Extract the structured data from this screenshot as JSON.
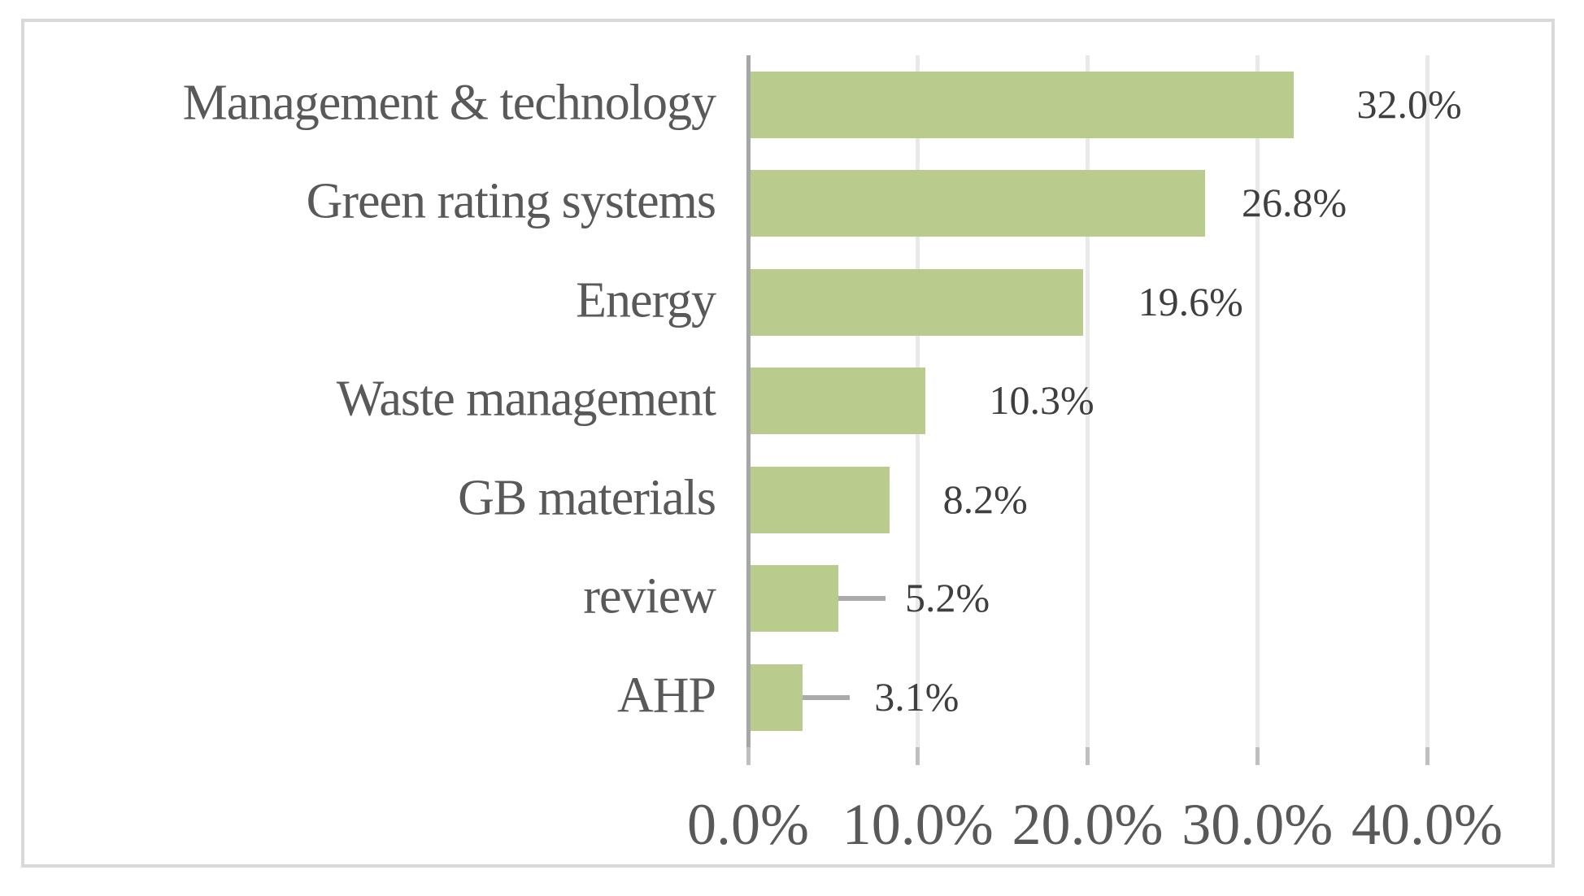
{
  "chart_data": {
    "type": "bar",
    "orientation": "horizontal",
    "title": "",
    "xlabel": "",
    "ylabel": "",
    "categories": [
      "Management & technology",
      "Green rating systems",
      "Energy",
      "Waste management",
      "GB materials",
      "review",
      "AHP"
    ],
    "values": [
      32.0,
      26.8,
      19.6,
      10.3,
      8.2,
      5.2,
      3.1
    ],
    "value_labels": [
      "32.0%",
      "26.8%",
      "19.6%",
      "10.3%",
      "8.2%",
      "5.2%",
      "3.1%"
    ],
    "items_with_leader_line": [
      "review",
      "AHP"
    ],
    "x_axis": {
      "tick_labels": [
        "0.0%",
        "10.0%",
        "20.0%",
        "30.0%",
        "40.0%"
      ],
      "tick_values": [
        0,
        10,
        20,
        30,
        40
      ],
      "range": [
        0,
        40
      ]
    },
    "grid": true,
    "legend": "none",
    "colors": {
      "bar": "#b9cc8d",
      "category_label": "#595959",
      "value_label": "#3f3f3f",
      "axis_line": "#a6a6a6",
      "gridline": "#e9e9e9",
      "tick_mark": "#bfbfbf",
      "frame_border": "#d9d9d9",
      "background": "#ffffff"
    }
  }
}
